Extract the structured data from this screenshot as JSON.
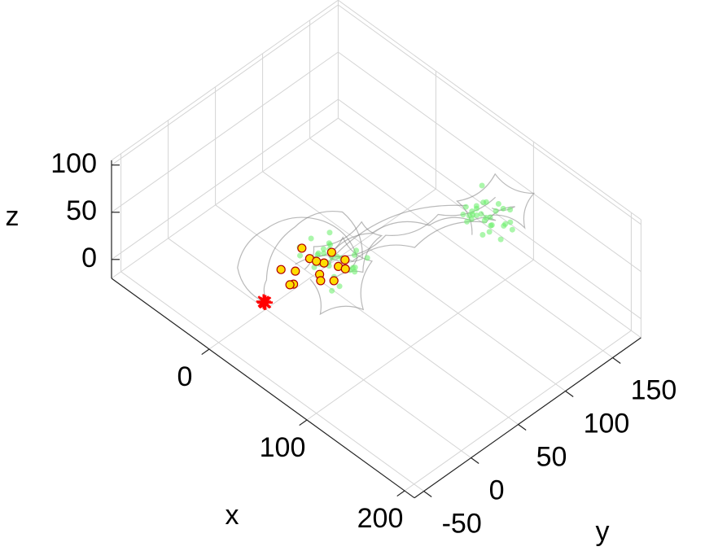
{
  "chart_data": {
    "type": "scatter3d",
    "xlabel": "x",
    "ylabel": "y",
    "zlabel": "z",
    "xlim": [
      -100,
      210
    ],
    "ylim": [
      -60,
      180
    ],
    "zlim": [
      -20,
      105
    ],
    "xticks": [
      0,
      100,
      200
    ],
    "yticks": [
      -50,
      0,
      50,
      100,
      150
    ],
    "zticks": [
      0,
      50,
      100
    ],
    "grid": true,
    "trajectories": {
      "color": "#808080",
      "lines": [
        {
          "x": [
            45,
            60,
            80,
            95,
            100,
            90
          ],
          "y": [
            20,
            50,
            90,
            120,
            140,
            135
          ],
          "z": [
            55,
            70,
            65,
            60,
            50,
            55
          ]
        },
        {
          "x": [
            30,
            50,
            75,
            100,
            110,
            96
          ],
          "y": [
            0,
            40,
            80,
            130,
            150,
            140
          ],
          "z": [
            50,
            40,
            45,
            55,
            65,
            60
          ]
        },
        {
          "x": [
            44,
            20,
            10,
            30,
            60,
            45
          ],
          "y": [
            -45,
            -20,
            20,
            50,
            40,
            20
          ],
          "z": [
            55,
            40,
            60,
            70,
            50,
            55
          ]
        },
        {
          "x": [
            60,
            80,
            70,
            40,
            20,
            35
          ],
          "y": [
            10,
            20,
            50,
            60,
            30,
            5
          ],
          "z": [
            50,
            65,
            75,
            60,
            40,
            45
          ]
        },
        {
          "x": [
            96,
            120,
            110,
            80,
            70,
            95
          ],
          "y": [
            136,
            150,
            170,
            160,
            130,
            120
          ],
          "z": [
            55,
            50,
            65,
            70,
            55,
            45
          ]
        },
        {
          "x": [
            45,
            0,
            -10,
            20,
            50,
            60
          ],
          "y": [
            -48,
            -30,
            10,
            40,
            45,
            20
          ],
          "z": [
            55,
            45,
            50,
            60,
            40,
            50
          ]
        },
        {
          "x": [
            90,
            70,
            55,
            40,
            50,
            85
          ],
          "y": [
            150,
            110,
            70,
            30,
            10,
            125
          ],
          "z": [
            60,
            55,
            50,
            45,
            55,
            65
          ]
        },
        {
          "x": [
            55,
            75,
            90,
            70,
            45,
            40
          ],
          "y": [
            -10,
            -20,
            10,
            40,
            35,
            15
          ],
          "z": [
            60,
            45,
            40,
            55,
            65,
            55
          ]
        }
      ]
    },
    "series": [
      {
        "color": "#66ee66",
        "marker": "dot",
        "x": [
          40,
          55,
          30,
          62,
          48,
          35,
          70,
          25,
          52,
          44,
          58,
          38,
          66,
          28,
          50,
          46,
          60,
          33,
          54,
          42,
          72,
          20,
          49,
          57,
          36,
          64,
          45,
          31,
          53,
          61,
          90,
          100,
          85,
          110,
          95,
          80,
          105,
          92,
          98,
          88,
          115,
          84,
          102,
          93,
          107,
          86,
          99,
          91,
          112,
          82,
          96,
          104,
          89,
          101,
          94,
          108,
          87,
          97,
          103,
          83
        ],
        "y": [
          20,
          10,
          30,
          25,
          5,
          15,
          35,
          22,
          40,
          0,
          18,
          28,
          12,
          38,
          24,
          8,
          32,
          2,
          14,
          27,
          20,
          15,
          45,
          -2,
          33,
          6,
          21,
          36,
          11,
          29,
          130,
          140,
          125,
          145,
          120,
          135,
          150,
          128,
          138,
          132,
          142,
          122,
          148,
          134,
          126,
          139,
          131,
          144,
          136,
          127,
          152,
          124,
          141,
          133,
          118,
          137,
          129,
          146,
          123,
          143
        ],
        "z": [
          55,
          60,
          45,
          50,
          70,
          40,
          62,
          58,
          48,
          65,
          35,
          52,
          75,
          44,
          56,
          68,
          42,
          60,
          30,
          53,
          64,
          50,
          47,
          72,
          38,
          58,
          80,
          46,
          61,
          49,
          55,
          60,
          48,
          52,
          70,
          40,
          58,
          65,
          45,
          62,
          50,
          57,
          42,
          68,
          53,
          47,
          75,
          35,
          56,
          60,
          51,
          64,
          44,
          59,
          66,
          38,
          54,
          61,
          49,
          72
        ]
      },
      {
        "color": "#ffdd00",
        "edge": "#b00000",
        "marker": "circle",
        "x": [
          30,
          35,
          40,
          45,
          50,
          55,
          60,
          38,
          48,
          58,
          32,
          52,
          62,
          44,
          42
        ],
        "y": [
          -15,
          -5,
          5,
          15,
          25,
          0,
          10,
          -10,
          20,
          -2,
          5,
          30,
          20,
          8,
          -18
        ],
        "z": [
          55,
          50,
          60,
          52,
          45,
          58,
          48,
          42,
          62,
          55,
          65,
          50,
          55,
          58,
          50
        ]
      },
      {
        "color": "#ff0000",
        "marker": "star",
        "x": [
          44,
          45,
          46
        ],
        "y": [
          -48,
          -47,
          -49
        ],
        "z": [
          55,
          54,
          56
        ]
      }
    ]
  }
}
